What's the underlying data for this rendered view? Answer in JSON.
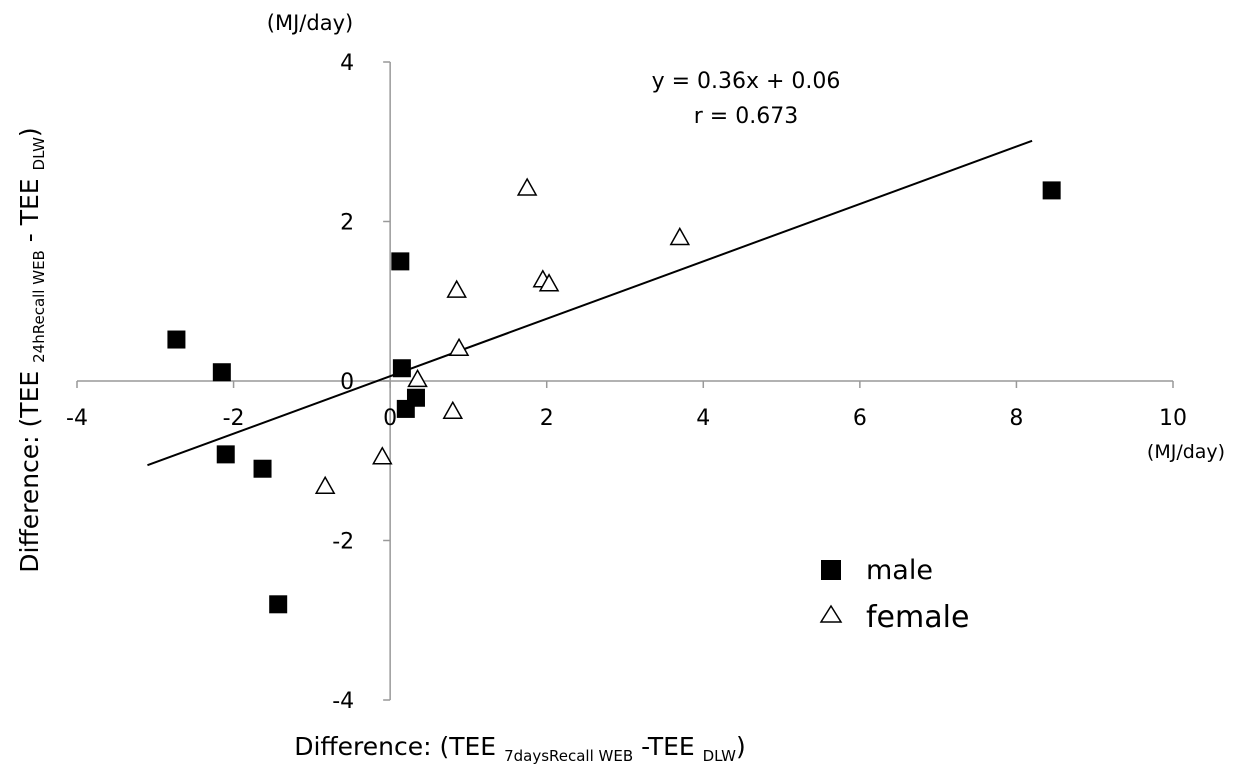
{
  "chart_data": {
    "type": "scatter",
    "title": "",
    "xlabel": {
      "prefix": "Difference:  (TEE ",
      "sub1": "7daysRecall WEB",
      "mid": " -TEE ",
      "sub2": "DLW",
      "suffix": ")"
    },
    "ylabel": {
      "prefix": "Difference:  (TEE ",
      "sub1": "24hRecall WEB",
      "mid": " - TEE ",
      "sub2": "DLW",
      "suffix": ")"
    },
    "x_unit": "(MJ/day)",
    "y_unit": "(MJ/day)",
    "xlim": [
      -4,
      10
    ],
    "ylim": [
      -4,
      4
    ],
    "x_ticks": [
      -4,
      -2,
      0,
      2,
      4,
      6,
      8,
      10
    ],
    "y_ticks": [
      -4,
      -2,
      0,
      2,
      4
    ],
    "grid": false,
    "legend_position": "bottom-right",
    "series": [
      {
        "name": "male",
        "marker": "filled-square",
        "color": "#000000",
        "points": [
          [
            -2.73,
            0.52
          ],
          [
            -2.15,
            0.11
          ],
          [
            -2.1,
            -0.92
          ],
          [
            -1.63,
            -1.1
          ],
          [
            -1.43,
            -2.8
          ],
          [
            0.13,
            1.5
          ],
          [
            0.15,
            0.16
          ],
          [
            0.2,
            -0.35
          ],
          [
            0.33,
            -0.21
          ],
          [
            8.45,
            2.39
          ]
        ]
      },
      {
        "name": "female",
        "marker": "open-triangle",
        "color": "#000000",
        "points": [
          [
            -0.83,
            -1.32
          ],
          [
            -0.1,
            -0.95
          ],
          [
            0.35,
            0.02
          ],
          [
            0.8,
            -0.38
          ],
          [
            0.85,
            1.14
          ],
          [
            0.88,
            0.41
          ],
          [
            1.75,
            2.42
          ],
          [
            1.95,
            1.27
          ],
          [
            2.03,
            1.22
          ],
          [
            3.7,
            1.8
          ]
        ]
      }
    ],
    "trendline": {
      "equation": "y = 0.36x + 0.06",
      "r_label": "r = 0.673",
      "slope": 0.36,
      "intercept": 0.06,
      "x_range": [
        -3.1,
        8.2
      ]
    }
  }
}
